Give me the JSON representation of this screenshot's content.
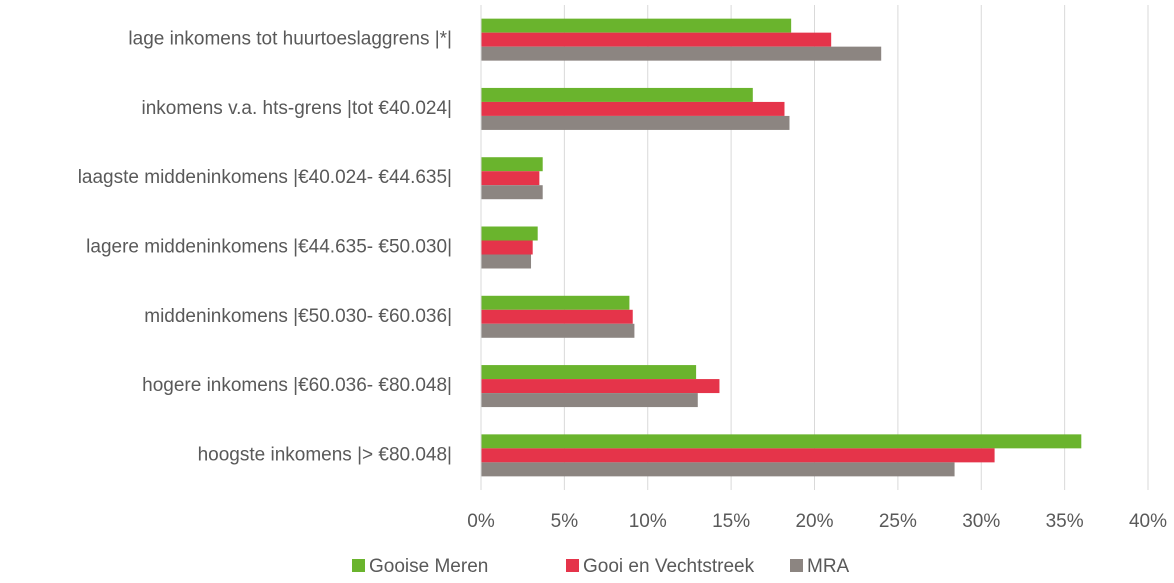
{
  "chart_data": {
    "type": "hbar",
    "categories": [
      "lage inkomens tot huurtoeslaggrens |*|",
      "inkomens v.a. hts-grens |tot €40.024|",
      "laagste middeninkomens |€40.024- €44.635|",
      "lagere middeninkomens |€44.635- €50.030|",
      "middeninkomens |€50.030- €60.036|",
      "hogere inkomens |€60.036- €80.048|",
      "hoogste inkomens |> €80.048|"
    ],
    "series": [
      {
        "name": "Gooise Meren",
        "color": "#6ab42d",
        "values": [
          18.6,
          16.3,
          3.7,
          3.4,
          8.9,
          12.9,
          36.0
        ]
      },
      {
        "name": "Gooi en Vechtstreek",
        "color": "#e5344a",
        "values": [
          21.0,
          18.2,
          3.5,
          3.1,
          9.1,
          14.3,
          30.8
        ]
      },
      {
        "name": "MRA",
        "color": "#8c8581",
        "values": [
          24.0,
          18.5,
          3.7,
          3.0,
          9.2,
          13.0,
          28.4
        ]
      }
    ],
    "xlim": [
      0,
      40
    ],
    "xticks": [
      {
        "value": 0,
        "label": "0%"
      },
      {
        "value": 5,
        "label": "5%"
      },
      {
        "value": 10,
        "label": "10%"
      },
      {
        "value": 15,
        "label": "15%"
      },
      {
        "value": 20,
        "label": "20%"
      },
      {
        "value": 25,
        "label": "25%"
      },
      {
        "value": 30,
        "label": "30%"
      },
      {
        "value": 35,
        "label": "35%"
      },
      {
        "value": 40,
        "label": "40%"
      }
    ],
    "grid": true,
    "legend": "bottom"
  }
}
